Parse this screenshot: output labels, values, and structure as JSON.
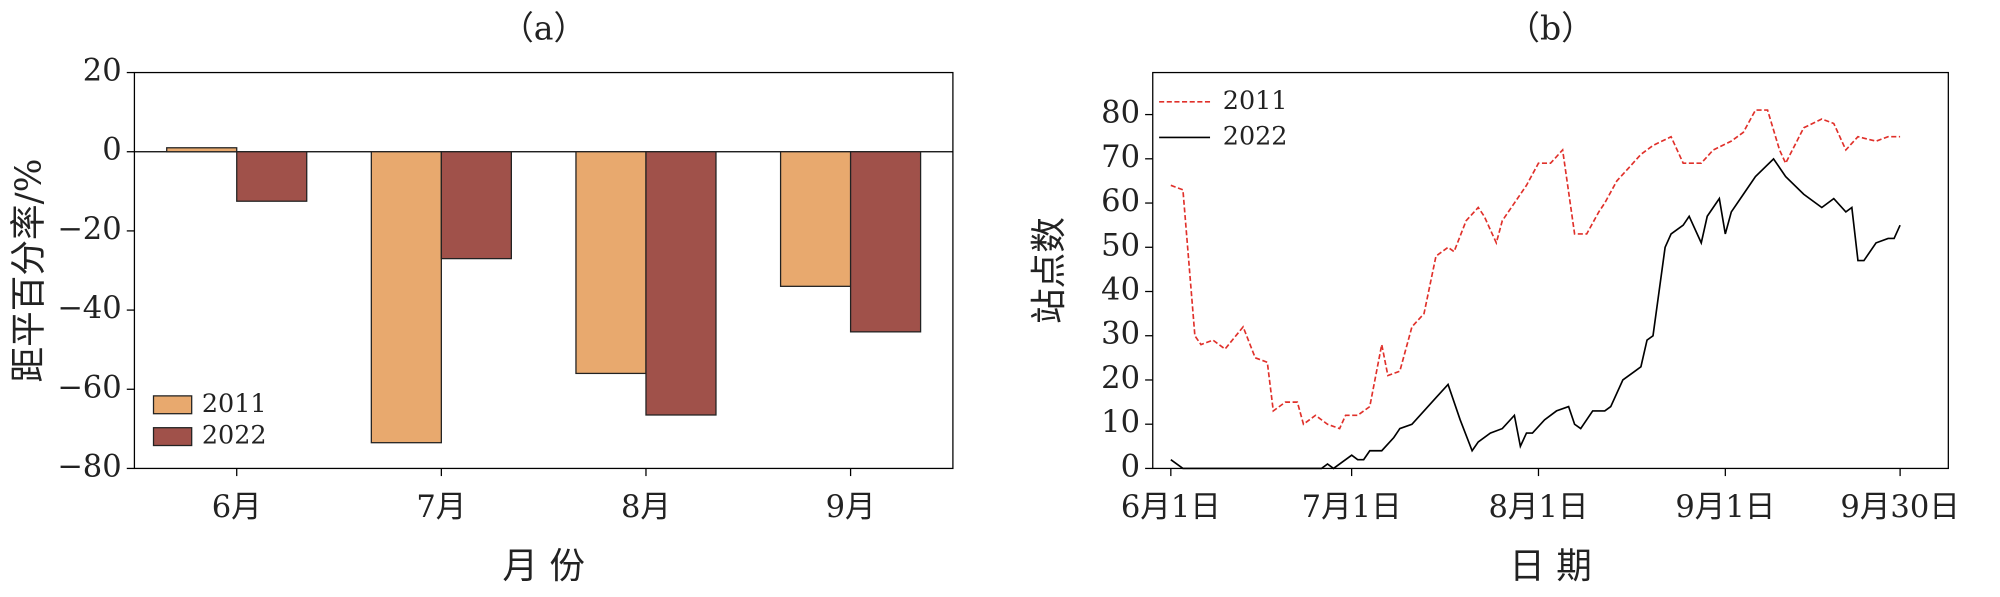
{
  "chart_data": [
    {
      "type": "bar",
      "title": "（a）",
      "x_label": "月 份",
      "y_label": "距平百分率/%",
      "categories": [
        "6月",
        "7月",
        "8月",
        "9月"
      ],
      "series": [
        {
          "name": "2011",
          "color": "#e8a96e",
          "values": [
            1,
            -73.5,
            -56,
            -34
          ]
        },
        {
          "name": "2022",
          "color": "#a0514a",
          "values": [
            -12.5,
            -27,
            -66.5,
            -45.5
          ]
        }
      ],
      "ylim": [
        -80,
        20
      ],
      "yticks": [
        {
          "value": -80,
          "label": "−80"
        },
        {
          "value": -60,
          "label": "−60"
        },
        {
          "value": -40,
          "label": "−40"
        },
        {
          "value": -20,
          "label": "−20"
        },
        0,
        20
      ],
      "legend": "lower left"
    },
    {
      "type": "line",
      "title": "（b）",
      "x_label": "日 期",
      "y_label": "站点数",
      "series": [
        {
          "name": "2011",
          "color": "#e0302a",
          "linestyle": "dashed",
          "x": [
            0,
            2,
            4,
            5,
            7,
            9,
            12,
            14,
            16,
            17,
            19,
            21,
            22,
            24,
            26,
            28,
            29,
            31,
            33,
            35,
            36,
            38,
            40,
            42,
            44,
            46,
            47,
            49,
            51,
            52,
            54,
            55,
            57,
            59,
            61,
            63,
            65,
            67,
            69,
            71,
            72,
            74,
            76,
            78,
            80,
            83,
            85,
            88,
            90,
            93,
            95,
            97,
            99,
            101,
            102,
            105,
            108,
            110,
            112,
            114,
            117,
            119,
            121
          ],
          "values": [
            64,
            63,
            30,
            28,
            29,
            27,
            32,
            25,
            24,
            13,
            15,
            15,
            10,
            12,
            10,
            9,
            12,
            12,
            14,
            28,
            21,
            22,
            32,
            35,
            48,
            50,
            49,
            56,
            59,
            57,
            51,
            56,
            60,
            64,
            69,
            69,
            72,
            53,
            53,
            58,
            60,
            65,
            68,
            71,
            73,
            75,
            69,
            69,
            72,
            74,
            76,
            81,
            81,
            72,
            69,
            77,
            79,
            78,
            72,
            75,
            74,
            75,
            75
          ]
        },
        {
          "name": "2022",
          "color": "#000000",
          "linestyle": "solid",
          "x": [
            0,
            2,
            25,
            26,
            27,
            30,
            31,
            32,
            33,
            35,
            37,
            38,
            40,
            42,
            44,
            46,
            48,
            50,
            51,
            53,
            55,
            57,
            58,
            59,
            60,
            62,
            64,
            66,
            67,
            68,
            70,
            72,
            73,
            75,
            77,
            78,
            79,
            80,
            82,
            83,
            85,
            86,
            88,
            89,
            91,
            92,
            93,
            95,
            97,
            100,
            102,
            105,
            108,
            110,
            112,
            113,
            114,
            115,
            117,
            119,
            120,
            121
          ],
          "values": [
            2,
            0,
            0,
            1,
            0,
            3,
            2,
            2,
            4,
            4,
            7,
            9,
            10,
            13,
            16,
            19,
            11,
            4,
            6,
            8,
            9,
            12,
            5,
            8,
            8,
            11,
            13,
            14,
            10,
            9,
            13,
            13,
            14,
            20,
            22,
            23,
            29,
            30,
            50,
            53,
            55,
            57,
            51,
            57,
            61,
            53,
            58,
            62,
            66,
            70,
            66,
            62,
            59,
            61,
            58,
            59,
            47,
            47,
            51,
            52,
            52,
            55
          ]
        }
      ],
      "xlim": [
        -3,
        129
      ],
      "xticks": [
        {
          "value": 0,
          "label": "6月1日"
        },
        {
          "value": 30,
          "label": "7月1日"
        },
        {
          "value": 61,
          "label": "8月1日"
        },
        {
          "value": 92,
          "label": "9月1日"
        },
        {
          "value": 121,
          "label": "9月30日"
        }
      ],
      "ylim": [
        0,
        89.5
      ],
      "yticks": [
        0,
        10,
        20,
        30,
        40,
        50,
        60,
        70,
        80
      ],
      "legend": "upper left"
    }
  ]
}
